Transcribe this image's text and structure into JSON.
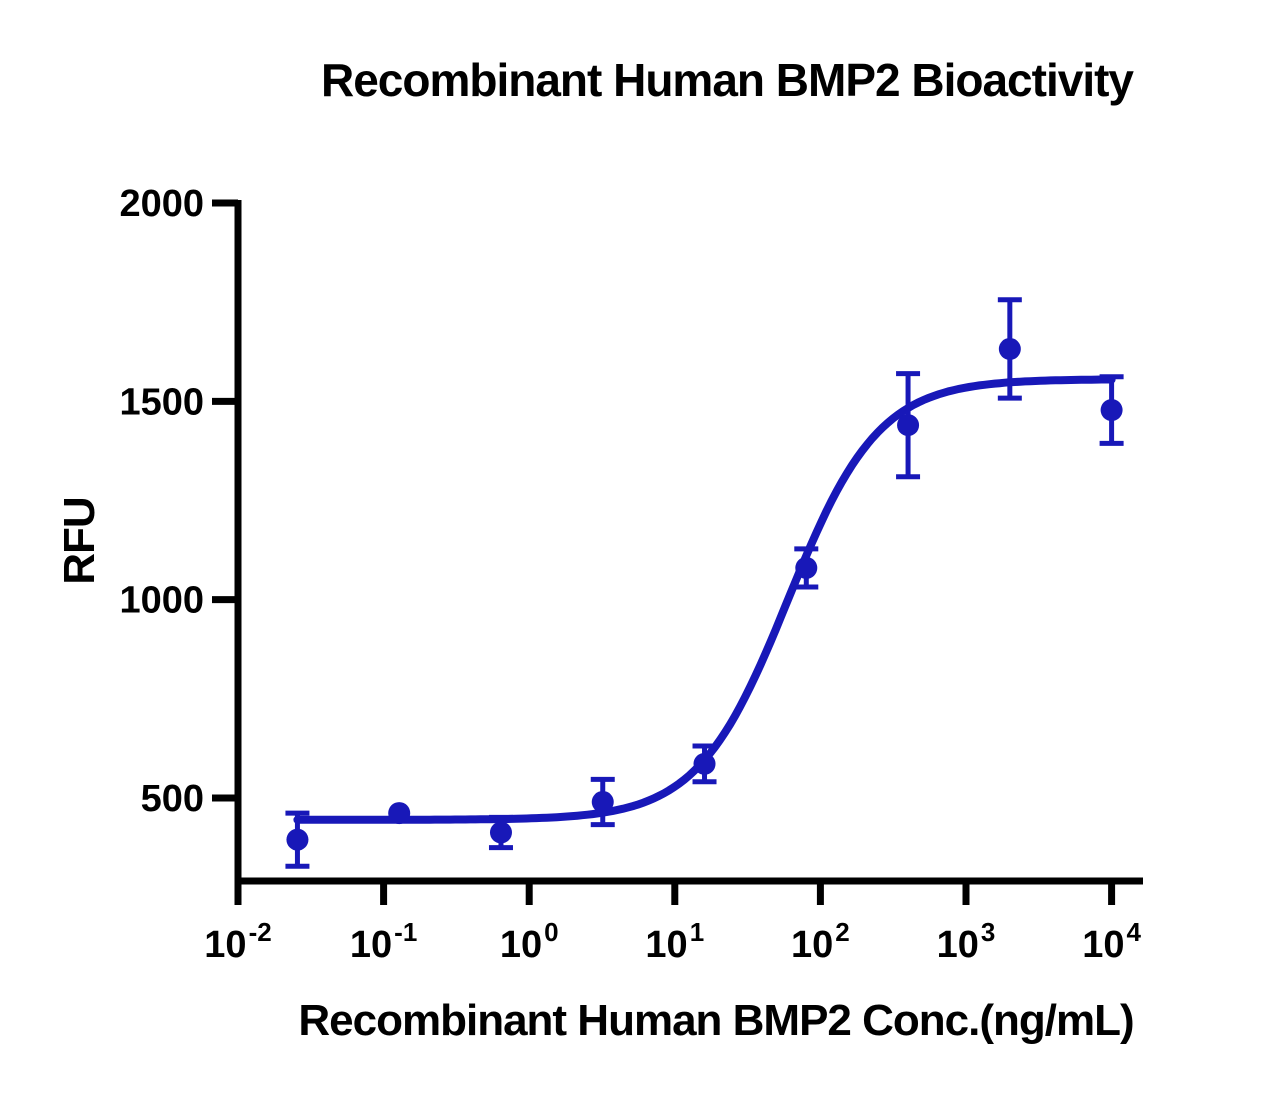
{
  "chart_data": {
    "type": "scatter",
    "curve_model": "4PL sigmoidal dose-response fit on log10 X axis",
    "title": "Recombinant Human BMP2 Bioactivity",
    "xlabel": "Recombinant Human BMP2 Conc.(ng/mL)",
    "ylabel": "RFU",
    "x_scale": "log10",
    "x_tick_exponents": [
      -2,
      -1,
      0,
      1,
      2,
      3,
      4
    ],
    "x_tick_base": "10",
    "y_ticks": [
      500,
      1000,
      1500,
      2000
    ],
    "ylim": [
      290,
      2000
    ],
    "xlim_log10": [
      -2,
      4.22
    ],
    "grid": false,
    "legend": false,
    "colors": {
      "series": "#1818b8",
      "axis": "#000000",
      "background": "#ffffff"
    },
    "points": [
      {
        "conc_ng_ml": 0.0256,
        "rfu": 395,
        "err": 67
      },
      {
        "conc_ng_ml": 0.128,
        "rfu": 462,
        "err": 0
      },
      {
        "conc_ng_ml": 0.64,
        "rfu": 413,
        "err": 38
      },
      {
        "conc_ng_ml": 3.2,
        "rfu": 490,
        "err": 57
      },
      {
        "conc_ng_ml": 16,
        "rfu": 586,
        "err": 45
      },
      {
        "conc_ng_ml": 80,
        "rfu": 1080,
        "err": 48
      },
      {
        "conc_ng_ml": 400,
        "rfu": 1440,
        "err": 130
      },
      {
        "conc_ng_ml": 2000,
        "rfu": 1632,
        "err": 124
      },
      {
        "conc_ng_ml": 10000,
        "rfu": 1478,
        "err": 84
      }
    ],
    "fit": {
      "bottom": 445,
      "top": 1556,
      "ec50_ng_ml": 60,
      "hill": 1.4
    }
  }
}
